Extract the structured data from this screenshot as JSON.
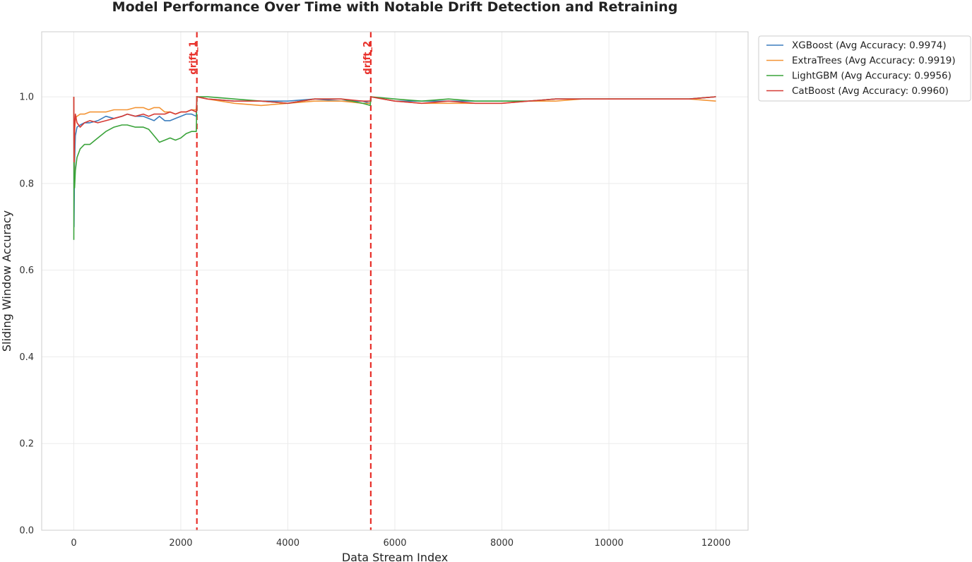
{
  "chart_data": {
    "type": "line",
    "title": "Model Performance Over Time with Notable Drift Detection and Retraining",
    "xlabel": "Data Stream Index",
    "ylabel": "Sliding Window Accuracy",
    "xlim": [
      -600,
      12600
    ],
    "ylim": [
      0.0,
      1.15
    ],
    "xticks": [
      0,
      2000,
      4000,
      6000,
      8000,
      10000,
      12000
    ],
    "yticks": [
      0.0,
      0.2,
      0.4,
      0.6,
      0.8,
      1.0
    ],
    "grid": true,
    "legend_position": "outside-top-right",
    "drift_color": "#e8302a",
    "drift_points": [
      {
        "x": 2300,
        "label": "drift_1"
      },
      {
        "x": 5550,
        "label": "drift_2"
      }
    ],
    "series": [
      {
        "name": "XGBoost (Avg Accuracy: 0.9974)",
        "color": "#3b7dbd",
        "points": [
          [
            0,
            1.0
          ],
          [
            5,
            0.7
          ],
          [
            15,
            0.85
          ],
          [
            30,
            0.91
          ],
          [
            60,
            0.93
          ],
          [
            120,
            0.935
          ],
          [
            200,
            0.94
          ],
          [
            300,
            0.94
          ],
          [
            450,
            0.945
          ],
          [
            600,
            0.955
          ],
          [
            750,
            0.95
          ],
          [
            900,
            0.955
          ],
          [
            1000,
            0.96
          ],
          [
            1150,
            0.955
          ],
          [
            1300,
            0.955
          ],
          [
            1400,
            0.95
          ],
          [
            1500,
            0.945
          ],
          [
            1600,
            0.955
          ],
          [
            1700,
            0.945
          ],
          [
            1800,
            0.945
          ],
          [
            1900,
            0.95
          ],
          [
            2000,
            0.955
          ],
          [
            2100,
            0.96
          ],
          [
            2200,
            0.96
          ],
          [
            2290,
            0.955
          ],
          [
            2300,
            1.0
          ],
          [
            2500,
            0.995
          ],
          [
            3000,
            0.99
          ],
          [
            3500,
            0.99
          ],
          [
            4000,
            0.99
          ],
          [
            4500,
            0.995
          ],
          [
            5000,
            0.99
          ],
          [
            5400,
            0.99
          ],
          [
            5540,
            0.985
          ],
          [
            5550,
            1.0
          ],
          [
            6000,
            0.99
          ],
          [
            6500,
            0.99
          ],
          [
            7000,
            0.99
          ],
          [
            7500,
            0.99
          ],
          [
            8000,
            0.99
          ],
          [
            8500,
            0.99
          ],
          [
            9000,
            0.995
          ],
          [
            9500,
            0.995
          ],
          [
            10000,
            0.995
          ],
          [
            10500,
            0.995
          ],
          [
            11000,
            0.995
          ],
          [
            11500,
            0.995
          ],
          [
            12000,
            1.0
          ]
        ]
      },
      {
        "name": "ExtraTrees (Avg Accuracy: 0.9919)",
        "color": "#f39435",
        "points": [
          [
            0,
            1.0
          ],
          [
            5,
            0.8
          ],
          [
            15,
            0.92
          ],
          [
            30,
            0.95
          ],
          [
            60,
            0.955
          ],
          [
            120,
            0.96
          ],
          [
            200,
            0.96
          ],
          [
            300,
            0.965
          ],
          [
            450,
            0.965
          ],
          [
            600,
            0.965
          ],
          [
            750,
            0.97
          ],
          [
            900,
            0.97
          ],
          [
            1000,
            0.97
          ],
          [
            1150,
            0.975
          ],
          [
            1300,
            0.975
          ],
          [
            1400,
            0.97
          ],
          [
            1500,
            0.975
          ],
          [
            1600,
            0.975
          ],
          [
            1700,
            0.965
          ],
          [
            1800,
            0.965
          ],
          [
            1900,
            0.96
          ],
          [
            2000,
            0.965
          ],
          [
            2100,
            0.965
          ],
          [
            2200,
            0.97
          ],
          [
            2290,
            0.97
          ],
          [
            2300,
            1.0
          ],
          [
            2500,
            0.995
          ],
          [
            3000,
            0.985
          ],
          [
            3500,
            0.98
          ],
          [
            4000,
            0.985
          ],
          [
            4500,
            0.99
          ],
          [
            5000,
            0.99
          ],
          [
            5400,
            0.985
          ],
          [
            5540,
            0.985
          ],
          [
            5550,
            1.0
          ],
          [
            6000,
            0.99
          ],
          [
            6500,
            0.985
          ],
          [
            7000,
            0.985
          ],
          [
            7500,
            0.985
          ],
          [
            8000,
            0.985
          ],
          [
            8500,
            0.99
          ],
          [
            9000,
            0.99
          ],
          [
            9500,
            0.995
          ],
          [
            10000,
            0.995
          ],
          [
            10500,
            0.995
          ],
          [
            11000,
            0.995
          ],
          [
            11500,
            0.995
          ],
          [
            12000,
            0.99
          ]
        ]
      },
      {
        "name": "LightGBM (Avg Accuracy: 0.9956)",
        "color": "#3aa33a",
        "points": [
          [
            0,
            0.67
          ],
          [
            3,
            0.85
          ],
          [
            8,
            0.8
          ],
          [
            15,
            0.79
          ],
          [
            30,
            0.83
          ],
          [
            60,
            0.86
          ],
          [
            120,
            0.88
          ],
          [
            200,
            0.89
          ],
          [
            300,
            0.89
          ],
          [
            450,
            0.905
          ],
          [
            600,
            0.92
          ],
          [
            750,
            0.93
          ],
          [
            900,
            0.935
          ],
          [
            1000,
            0.935
          ],
          [
            1150,
            0.93
          ],
          [
            1300,
            0.93
          ],
          [
            1400,
            0.925
          ],
          [
            1500,
            0.91
          ],
          [
            1600,
            0.895
          ],
          [
            1700,
            0.9
          ],
          [
            1800,
            0.905
          ],
          [
            1900,
            0.9
          ],
          [
            2000,
            0.905
          ],
          [
            2100,
            0.915
          ],
          [
            2200,
            0.92
          ],
          [
            2290,
            0.92
          ],
          [
            2300,
            1.0
          ],
          [
            2500,
            1.0
          ],
          [
            3000,
            0.995
          ],
          [
            3500,
            0.99
          ],
          [
            4000,
            0.985
          ],
          [
            4500,
            0.995
          ],
          [
            5000,
            0.995
          ],
          [
            5400,
            0.985
          ],
          [
            5540,
            0.98
          ],
          [
            5550,
            1.0
          ],
          [
            6000,
            0.995
          ],
          [
            6500,
            0.99
          ],
          [
            7000,
            0.995
          ],
          [
            7500,
            0.99
          ],
          [
            8000,
            0.99
          ],
          [
            8500,
            0.99
          ],
          [
            9000,
            0.995
          ],
          [
            9500,
            0.995
          ],
          [
            10000,
            0.995
          ],
          [
            10500,
            0.995
          ],
          [
            11000,
            0.995
          ],
          [
            11500,
            0.995
          ],
          [
            12000,
            1.0
          ]
        ]
      },
      {
        "name": "CatBoost (Avg Accuracy: 0.9960)",
        "color": "#d63a35",
        "points": [
          [
            0,
            1.0
          ],
          [
            5,
            0.85
          ],
          [
            15,
            0.93
          ],
          [
            30,
            0.96
          ],
          [
            60,
            0.94
          ],
          [
            120,
            0.93
          ],
          [
            200,
            0.94
          ],
          [
            300,
            0.945
          ],
          [
            450,
            0.94
          ],
          [
            600,
            0.945
          ],
          [
            750,
            0.95
          ],
          [
            900,
            0.955
          ],
          [
            1000,
            0.96
          ],
          [
            1150,
            0.955
          ],
          [
            1300,
            0.96
          ],
          [
            1400,
            0.955
          ],
          [
            1500,
            0.96
          ],
          [
            1600,
            0.96
          ],
          [
            1700,
            0.96
          ],
          [
            1800,
            0.965
          ],
          [
            1900,
            0.96
          ],
          [
            2000,
            0.965
          ],
          [
            2100,
            0.965
          ],
          [
            2200,
            0.97
          ],
          [
            2290,
            0.965
          ],
          [
            2300,
            1.0
          ],
          [
            2500,
            0.995
          ],
          [
            3000,
            0.99
          ],
          [
            3500,
            0.99
          ],
          [
            4000,
            0.985
          ],
          [
            4500,
            0.995
          ],
          [
            5000,
            0.995
          ],
          [
            5400,
            0.99
          ],
          [
            5540,
            0.99
          ],
          [
            5550,
            1.0
          ],
          [
            6000,
            0.99
          ],
          [
            6500,
            0.985
          ],
          [
            7000,
            0.99
          ],
          [
            7500,
            0.985
          ],
          [
            8000,
            0.985
          ],
          [
            8500,
            0.99
          ],
          [
            9000,
            0.995
          ],
          [
            9500,
            0.995
          ],
          [
            10000,
            0.995
          ],
          [
            10500,
            0.995
          ],
          [
            11000,
            0.995
          ],
          [
            11500,
            0.995
          ],
          [
            12000,
            1.0
          ]
        ]
      }
    ]
  }
}
